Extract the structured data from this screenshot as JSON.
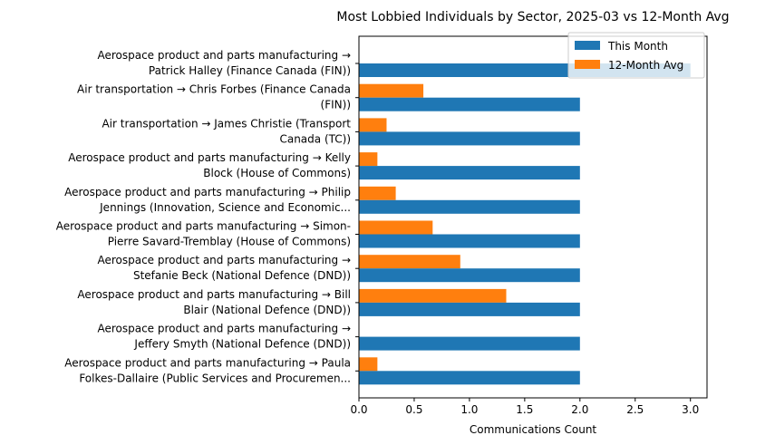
{
  "chart_data": {
    "type": "bar",
    "orientation": "horizontal",
    "title": "Most Lobbied Individuals by Sector, 2025-03 vs 12-Month Avg",
    "xlabel": "Communications Count",
    "ylabel": "",
    "xlim": [
      0,
      3.15
    ],
    "xticks": [
      "0.0",
      "0.5",
      "1.0",
      "1.5",
      "2.0",
      "2.5",
      "3.0"
    ],
    "legend_position": "top-right",
    "categories": [
      [
        "Aerospace product and parts manufacturing →",
        "Patrick Halley (Finance Canada (FIN))"
      ],
      [
        "Air transportation → Chris Forbes (Finance Canada",
        "(FIN))"
      ],
      [
        "Air transportation → James Christie (Transport",
        "Canada (TC))"
      ],
      [
        "Aerospace product and parts manufacturing → Kelly",
        "Block (House of Commons)"
      ],
      [
        "Aerospace product and parts manufacturing → Philip",
        "Jennings (Innovation, Science and Economic..."
      ],
      [
        "Aerospace product and parts manufacturing → Simon-",
        "Pierre Savard-Tremblay (House of Commons)"
      ],
      [
        "Aerospace product and parts manufacturing →",
        "Stefanie Beck (National Defence (DND))"
      ],
      [
        "Aerospace product and parts manufacturing → Bill",
        "Blair (National Defence (DND))"
      ],
      [
        "Aerospace product and parts manufacturing →",
        "Jeffery Smyth (National Defence (DND))"
      ],
      [
        "Aerospace product and parts manufacturing → Paula",
        "Folkes-Dallaire (Public Services and Procuremen..."
      ]
    ],
    "series": [
      {
        "name": "This Month",
        "color": "#1f77b4",
        "values": [
          3,
          2,
          2,
          2,
          2,
          2,
          2,
          2,
          2,
          2
        ]
      },
      {
        "name": "12-Month Avg",
        "color": "#ff7f0e",
        "values": [
          0,
          0.583,
          0.25,
          0.167,
          0.333,
          0.667,
          0.917,
          1.333,
          0,
          0.167
        ]
      }
    ]
  }
}
